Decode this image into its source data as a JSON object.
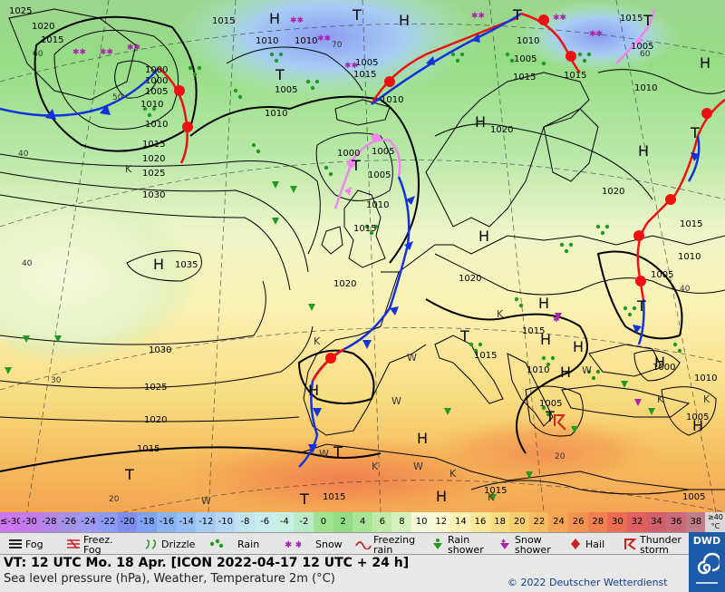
{
  "map": {
    "labels": [
      {
        "t": "1025"
      },
      {
        "t": "1020"
      },
      {
        "t": "1015"
      },
      {
        "t": "1010"
      },
      {
        "t": "1005"
      },
      {
        "t": "1000"
      },
      {
        "t": "1015"
      },
      {
        "t": "1010"
      },
      {
        "t": "1005"
      },
      {
        "t": "1010"
      },
      {
        "t": "1000"
      },
      {
        "t": "1015"
      },
      {
        "t": "1020"
      },
      {
        "t": "1025"
      },
      {
        "t": "1030"
      },
      {
        "t": "1035"
      },
      {
        "t": "1010"
      },
      {
        "t": "1005"
      },
      {
        "t": "1000"
      },
      {
        "t": "1005"
      },
      {
        "t": "1010"
      },
      {
        "t": "1015"
      },
      {
        "t": "1010"
      },
      {
        "t": "1015"
      },
      {
        "t": "1010"
      },
      {
        "t": "1005"
      },
      {
        "t": "1020"
      },
      {
        "t": "1015"
      },
      {
        "t": "1020"
      },
      {
        "t": "1020"
      },
      {
        "t": "1020"
      },
      {
        "t": "1015"
      },
      {
        "t": "1015"
      },
      {
        "t": "1010"
      },
      {
        "t": "1005"
      },
      {
        "t": "1015"
      },
      {
        "t": "1010"
      },
      {
        "t": "1005"
      },
      {
        "t": "1000"
      },
      {
        "t": "1010"
      },
      {
        "t": "1005"
      },
      {
        "t": "1010"
      },
      {
        "t": "1005"
      },
      {
        "t": "1015"
      },
      {
        "t": "1005"
      },
      {
        "t": "1030"
      },
      {
        "t": "1025"
      },
      {
        "t": "1020"
      },
      {
        "t": "1015"
      },
      {
        "t": "1015"
      },
      {
        "t": "1015"
      },
      {
        "t": "1015"
      },
      {
        "t": "1010"
      },
      {
        "t": "1005"
      }
    ],
    "lat_labels": [
      {
        "t": "60"
      },
      {
        "t": "50"
      },
      {
        "t": "40"
      },
      {
        "t": "40"
      },
      {
        "t": "30"
      },
      {
        "t": "20"
      },
      {
        "t": "70"
      },
      {
        "t": "60"
      },
      {
        "t": "40"
      },
      {
        "t": "20"
      }
    ],
    "pressure_centers": [
      {
        "t": "H"
      },
      {
        "t": "T"
      },
      {
        "t": "H"
      },
      {
        "t": "T"
      },
      {
        "t": "T"
      },
      {
        "t": "T"
      },
      {
        "t": "T"
      },
      {
        "t": "H"
      },
      {
        "t": "H"
      },
      {
        "t": "H"
      },
      {
        "t": "H"
      },
      {
        "t": "H"
      },
      {
        "t": "T"
      },
      {
        "t": "T"
      },
      {
        "t": "H"
      },
      {
        "t": "H"
      },
      {
        "t": "H"
      },
      {
        "t": "T"
      },
      {
        "t": "T"
      },
      {
        "t": "H"
      },
      {
        "t": "T"
      },
      {
        "t": "H"
      },
      {
        "t": "T"
      },
      {
        "t": "T"
      },
      {
        "t": "H"
      },
      {
        "t": "H"
      },
      {
        "t": "H"
      },
      {
        "t": "H"
      }
    ],
    "region_letters": [
      {
        "t": "K"
      },
      {
        "t": "K"
      },
      {
        "t": "K"
      },
      {
        "t": "K"
      },
      {
        "t": "K"
      },
      {
        "t": "K"
      },
      {
        "t": "K"
      },
      {
        "t": "K"
      },
      {
        "t": "W"
      },
      {
        "t": "W"
      },
      {
        "t": "W"
      },
      {
        "t": "W"
      },
      {
        "t": "W"
      },
      {
        "t": "W"
      }
    ],
    "high_value": "1035"
  },
  "colorbar": {
    "cells": [
      {
        "v": "≤-30",
        "c": "#cc77ee"
      },
      {
        "v": "-30",
        "c": "#c27be8"
      },
      {
        "v": "-28",
        "c": "#b487e6"
      },
      {
        "v": "-26",
        "c": "#a592e6"
      },
      {
        "v": "-24",
        "c": "#9a9af0"
      },
      {
        "v": "-22",
        "c": "#8d9cf2"
      },
      {
        "v": "-20",
        "c": "#7d8ef0"
      },
      {
        "v": "-18",
        "c": "#7fa2f2"
      },
      {
        "v": "-16",
        "c": "#89b3f3"
      },
      {
        "v": "-14",
        "c": "#95c0f4"
      },
      {
        "v": "-12",
        "c": "#a6ccf5"
      },
      {
        "v": "-10",
        "c": "#b5d7f5"
      },
      {
        "v": "-8",
        "c": "#c2e3f2"
      },
      {
        "v": "-6",
        "c": "#c8ecee"
      },
      {
        "v": "-4",
        "c": "#c8f0e2"
      },
      {
        "v": "-2",
        "c": "#b8ecc8"
      },
      {
        "v": "0",
        "c": "#9fe28f"
      },
      {
        "v": "2",
        "c": "#93dc86"
      },
      {
        "v": "4",
        "c": "#a8e496"
      },
      {
        "v": "6",
        "c": "#c0eaa8"
      },
      {
        "v": "8",
        "c": "#d6f0bc"
      },
      {
        "v": "10",
        "c": "#f6f9dc"
      },
      {
        "v": "12",
        "c": "#fbf9cf"
      },
      {
        "v": "14",
        "c": "#fbf1b3"
      },
      {
        "v": "16",
        "c": "#fae89a"
      },
      {
        "v": "18",
        "c": "#f8dc80"
      },
      {
        "v": "20",
        "c": "#f7cc6e"
      },
      {
        "v": "22",
        "c": "#f6bb5f"
      },
      {
        "v": "24",
        "c": "#f4a553"
      },
      {
        "v": "26",
        "c": "#f2944f"
      },
      {
        "v": "28",
        "c": "#f08050"
      },
      {
        "v": "30",
        "c": "#ea6d53"
      },
      {
        "v": "32",
        "c": "#e06060"
      },
      {
        "v": "34",
        "c": "#d2606c"
      },
      {
        "v": "36",
        "c": "#c86a78"
      },
      {
        "v": "38",
        "c": "#c07c88"
      },
      {
        "v": "≥40 °C",
        "c": "#d8d8d8"
      }
    ]
  },
  "legend": {
    "fog": "Fog",
    "freezing_fog": "Freez. Fog",
    "drizzle": "Drizzle",
    "rain": "Rain",
    "snow": "Snow",
    "freezing_rain": "Freezing rain",
    "rain_shower": "Rain shower",
    "snow_shower": "Snow shower",
    "hail": "Hail",
    "thunderstorm": "Thunder storm"
  },
  "info": {
    "vt": "VT: 12 UTC Mo.  18 Apr. [ICON 2022-04-17  12 UTC + 24 h]",
    "desc": "Sea level pressure (hPa), Weather, Temperature 2m (°C)",
    "copyright": "© 2022 Deutscher Wetterdienst",
    "logo": "DWD"
  },
  "colors": {
    "warm_front": "#ee1111",
    "cold_front": "#1133dd",
    "occlusion": "#ee88ee",
    "isobar": "#000000",
    "rain": "#229922",
    "snow": "#aa22aa"
  }
}
